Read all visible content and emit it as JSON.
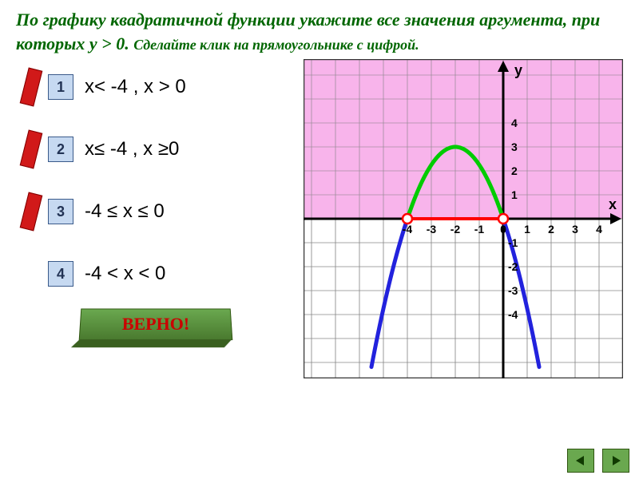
{
  "question": {
    "main": "По графику квадратичной функции укажите все значения аргумента, при которых у > 0.",
    "sub": "Сделайте клик на прямоугольнике с цифрой.",
    "color": "#006600"
  },
  "answers": {
    "box_bg": "#c6d9f1",
    "box_border": "#3a5a8a",
    "red_bar": "#d11919",
    "items": [
      {
        "num": "1",
        "text": "x< -4   , x > 0",
        "wrong": true
      },
      {
        "num": "2",
        "text": "x≤ -4   , x ≥0",
        "wrong": true
      },
      {
        "num": "3",
        "text": "-4 ≤ x ≤ 0",
        "wrong": true
      },
      {
        "num": "4",
        "text": "-4 < x < 0",
        "wrong": false
      }
    ]
  },
  "correct_label": "ВЕРНО!",
  "chart": {
    "type": "parabola",
    "xlim": [
      -5,
      5
    ],
    "ylim": [
      -5,
      5
    ],
    "tick_step": 1,
    "grid_color": "#888888",
    "axis_color": "#000000",
    "upper_fill": "#f7a7e7",
    "x_labels": [
      "-4",
      "-3",
      "-2",
      "-1",
      "0",
      "1",
      "2",
      "3",
      "4"
    ],
    "y_labels_pos": [
      "1",
      "2",
      "3",
      "4"
    ],
    "y_labels_neg": [
      "-1",
      "-2",
      "-3",
      "-4"
    ],
    "axis_label_x": "x",
    "axis_label_y": "y",
    "axis_label_fontsize": 18,
    "tick_label_fontsize": 14,
    "parabola": {
      "vertex": [
        -2,
        3
      ],
      "a": -0.75,
      "roots": [
        -4,
        0
      ],
      "upper_color": "#00cc00",
      "lower_color": "#2222dd",
      "stroke_width": 5
    },
    "root_segment_color": "#ff0000",
    "root_marker": {
      "fill": "#ffffff",
      "stroke": "#ff0000",
      "radius": 6
    }
  },
  "nav": {
    "prev": "◄",
    "next": "►",
    "bg": "#6aa84f"
  }
}
